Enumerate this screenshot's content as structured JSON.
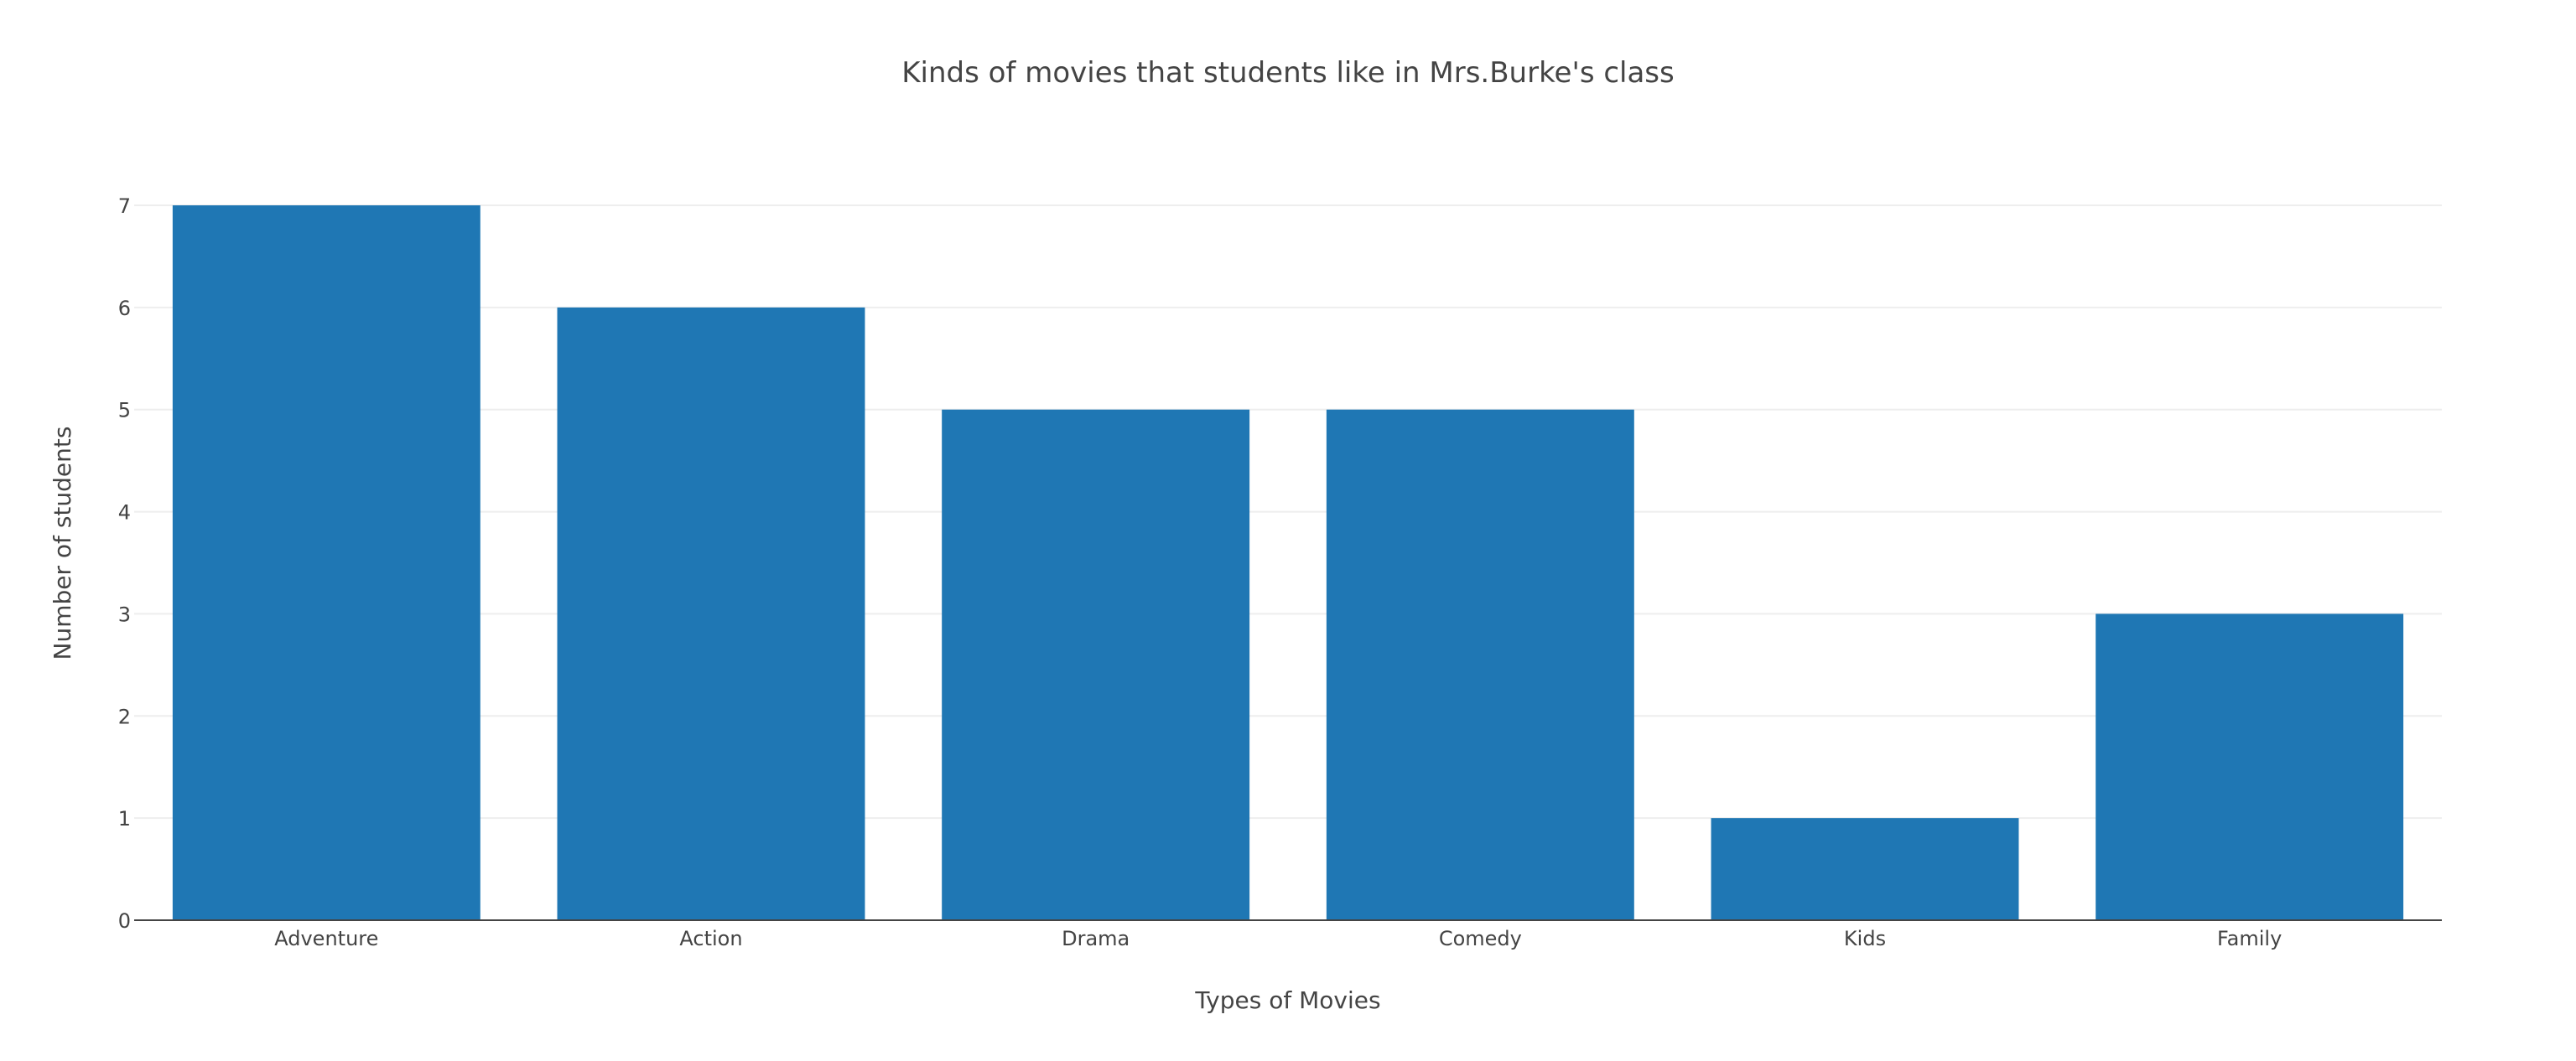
{
  "chart_data": {
    "type": "bar",
    "title": "Kinds of movies that students like in Mrs.Burke's class",
    "xlabel": "Types of Movies",
    "ylabel": "Number of students",
    "categories": [
      "Adventure",
      "Action",
      "Drama",
      "Comedy",
      "Kids",
      "Family"
    ],
    "values": [
      7,
      6,
      5,
      5,
      1,
      3
    ],
    "ylim": [
      0,
      7
    ],
    "yticks": [
      0,
      1,
      2,
      3,
      4,
      5,
      6,
      7
    ],
    "grid": true,
    "legend": "none",
    "colors": {
      "bar": "#1f77b4",
      "grid": "#eeeeee",
      "axis_line": "#444444",
      "text": "#444444",
      "title": "#444444"
    }
  }
}
